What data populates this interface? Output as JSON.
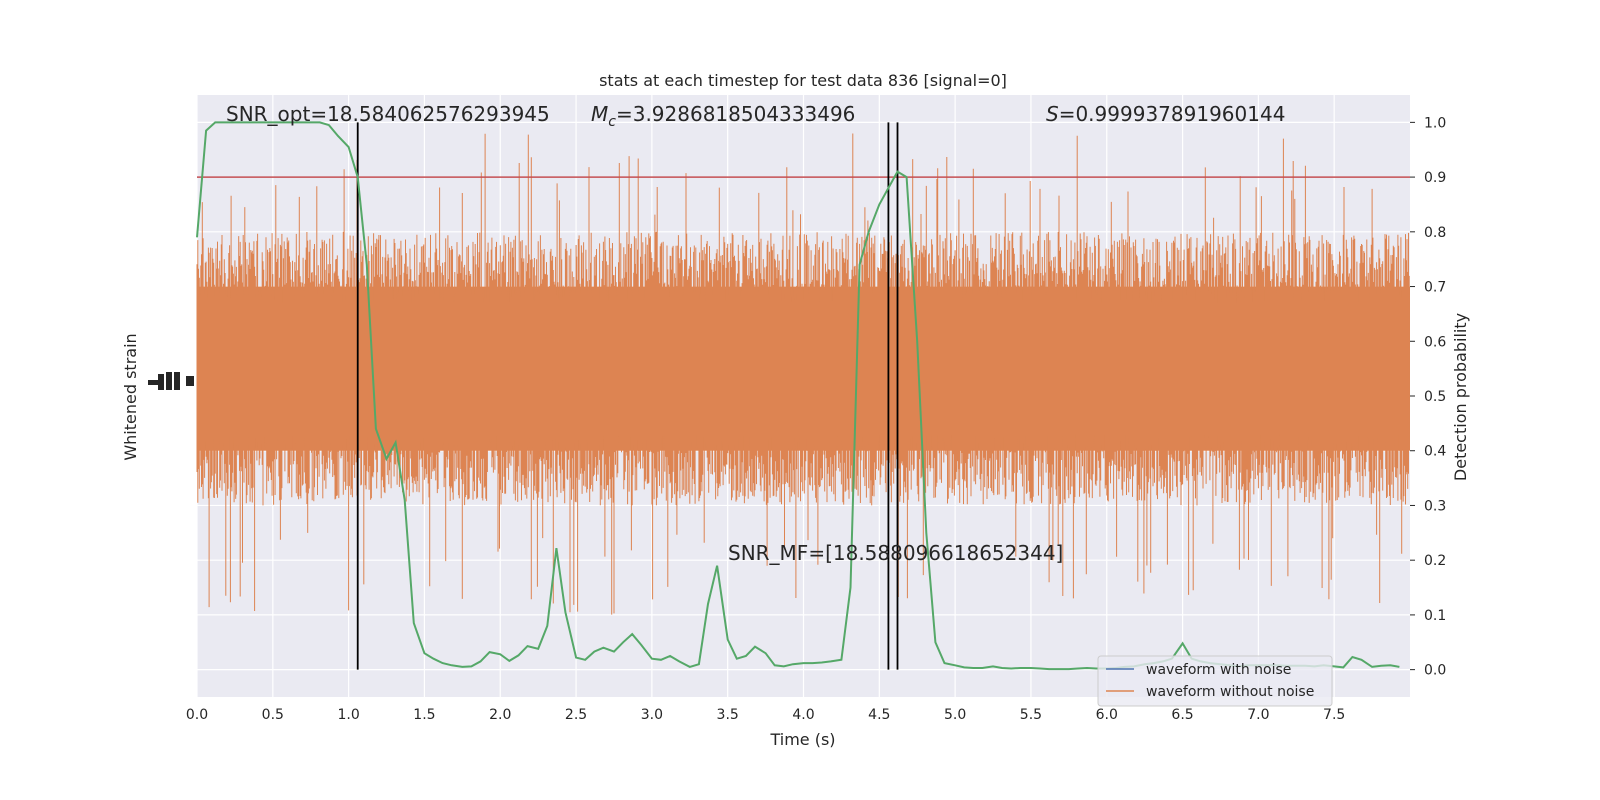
{
  "chart_data": {
    "type": "line",
    "title": "stats at each timestep for test data 836 [signal=0]",
    "xlabel": "Time (s)",
    "ylabel_left": "Whitened strain",
    "ylabel_right": "Detection probability",
    "xlim": [
      0,
      8.0
    ],
    "ylim_right": [
      -0.05,
      1.05
    ],
    "grid": true,
    "x_ticks": [
      "0.0",
      "0.5",
      "1.0",
      "1.5",
      "2.0",
      "2.5",
      "3.0",
      "3.5",
      "4.0",
      "4.5",
      "5.0",
      "5.5",
      "6.0",
      "6.5",
      "7.0",
      "7.5"
    ],
    "y_ticks_right": [
      "0.0",
      "0.1",
      "0.2",
      "0.3",
      "0.4",
      "0.5",
      "0.6",
      "0.7",
      "0.8",
      "0.9",
      "1.0"
    ],
    "annotations": {
      "snr_opt": "SNR_opt=18.584062576293945",
      "mc_symbol": "M",
      "mc_sub": "c",
      "mc_value": "=3.9286818504333496",
      "s_symbol": "S",
      "s_value": "=0.999937891960144",
      "snr_mf": "SNR_MF=[18.588096618652344]"
    },
    "threshold": 0.9,
    "vertical_lines_x": [
      1.06,
      4.56,
      4.62
    ],
    "legend": {
      "placement": "lower-right",
      "entries": [
        {
          "label": "waveform with noise",
          "color": "#4c72b0"
        },
        {
          "label": "waveform without noise",
          "color": "#dd8452"
        }
      ]
    },
    "series": [
      {
        "axis": "right",
        "color": "#55a868",
        "x": [
          0.0,
          0.06,
          0.12,
          0.18,
          0.25,
          0.31,
          0.37,
          0.43,
          0.5,
          0.56,
          0.62,
          0.68,
          0.75,
          0.81,
          0.87,
          0.93,
          1.0,
          1.06,
          1.12,
          1.18,
          1.25,
          1.31,
          1.37,
          1.43,
          1.5,
          1.56,
          1.62,
          1.68,
          1.75,
          1.81,
          1.87,
          1.93,
          2.0,
          2.06,
          2.12,
          2.18,
          2.25,
          2.31,
          2.37,
          2.43,
          2.5,
          2.56,
          2.62,
          2.68,
          2.75,
          2.81,
          2.87,
          2.93,
          3.0,
          3.06,
          3.12,
          3.18,
          3.25,
          3.31,
          3.37,
          3.43,
          3.5,
          3.56,
          3.62,
          3.68,
          3.75,
          3.81,
          3.87,
          3.93,
          4.0,
          4.06,
          4.12,
          4.18,
          4.25,
          4.31,
          4.37,
          4.43,
          4.5,
          4.56,
          4.62,
          4.68,
          4.75,
          4.81,
          4.87,
          4.93,
          5.0,
          5.06,
          5.12,
          5.18,
          5.25,
          5.31,
          5.37,
          5.43,
          5.5,
          5.56,
          5.62,
          5.68,
          5.75,
          5.81,
          5.87,
          5.93,
          6.0,
          6.06,
          6.12,
          6.18,
          6.25,
          6.31,
          6.37,
          6.43,
          6.5,
          6.56,
          6.62,
          6.68,
          6.75,
          6.81,
          6.87,
          6.93,
          7.0,
          7.06,
          7.12,
          7.18,
          7.25,
          7.31,
          7.37,
          7.43,
          7.5,
          7.56,
          7.62,
          7.68,
          7.75,
          7.81,
          7.87,
          7.93
        ],
        "values": [
          0.79,
          0.985,
          1.0,
          1.0,
          1.0,
          1.0,
          1.0,
          1.0,
          1.0,
          1.0,
          1.0,
          1.0,
          1.0,
          1.0,
          0.995,
          0.975,
          0.955,
          0.9,
          0.74,
          0.44,
          0.385,
          0.415,
          0.31,
          0.085,
          0.03,
          0.02,
          0.012,
          0.008,
          0.005,
          0.006,
          0.015,
          0.032,
          0.028,
          0.016,
          0.026,
          0.043,
          0.038,
          0.08,
          0.222,
          0.105,
          0.022,
          0.018,
          0.033,
          0.04,
          0.033,
          0.05,
          0.065,
          0.045,
          0.02,
          0.018,
          0.025,
          0.015,
          0.005,
          0.01,
          0.12,
          0.19,
          0.055,
          0.02,
          0.025,
          0.042,
          0.03,
          0.008,
          0.006,
          0.01,
          0.012,
          0.012,
          0.013,
          0.015,
          0.018,
          0.15,
          0.74,
          0.8,
          0.85,
          0.88,
          0.91,
          0.9,
          0.6,
          0.25,
          0.05,
          0.012,
          0.008,
          0.004,
          0.003,
          0.003,
          0.006,
          0.003,
          0.002,
          0.003,
          0.003,
          0.002,
          0.001,
          0.001,
          0.001,
          0.002,
          0.003,
          0.002,
          0.002,
          0.003,
          0.005,
          0.006,
          0.01,
          0.012,
          0.015,
          0.02,
          0.048,
          0.02,
          0.015,
          0.012,
          0.01,
          0.008,
          0.006,
          0.008,
          0.008,
          0.008,
          0.008,
          0.007,
          0.007,
          0.007,
          0.006,
          0.008,
          0.006,
          0.004,
          0.023,
          0.018,
          0.005,
          0.007,
          0.008,
          0.005
        ]
      },
      {
        "axis": "right",
        "name": "waveform without noise",
        "color": "#dd8452",
        "description_samples": "approximately 0.55 mean with noise band 0.3-0.8, peaks up to ~1.0 and troughs down to ~0.0",
        "center": 0.55,
        "band": [
          0.3,
          0.8
        ],
        "extremes": [
          0.0,
          1.0
        ]
      }
    ]
  }
}
